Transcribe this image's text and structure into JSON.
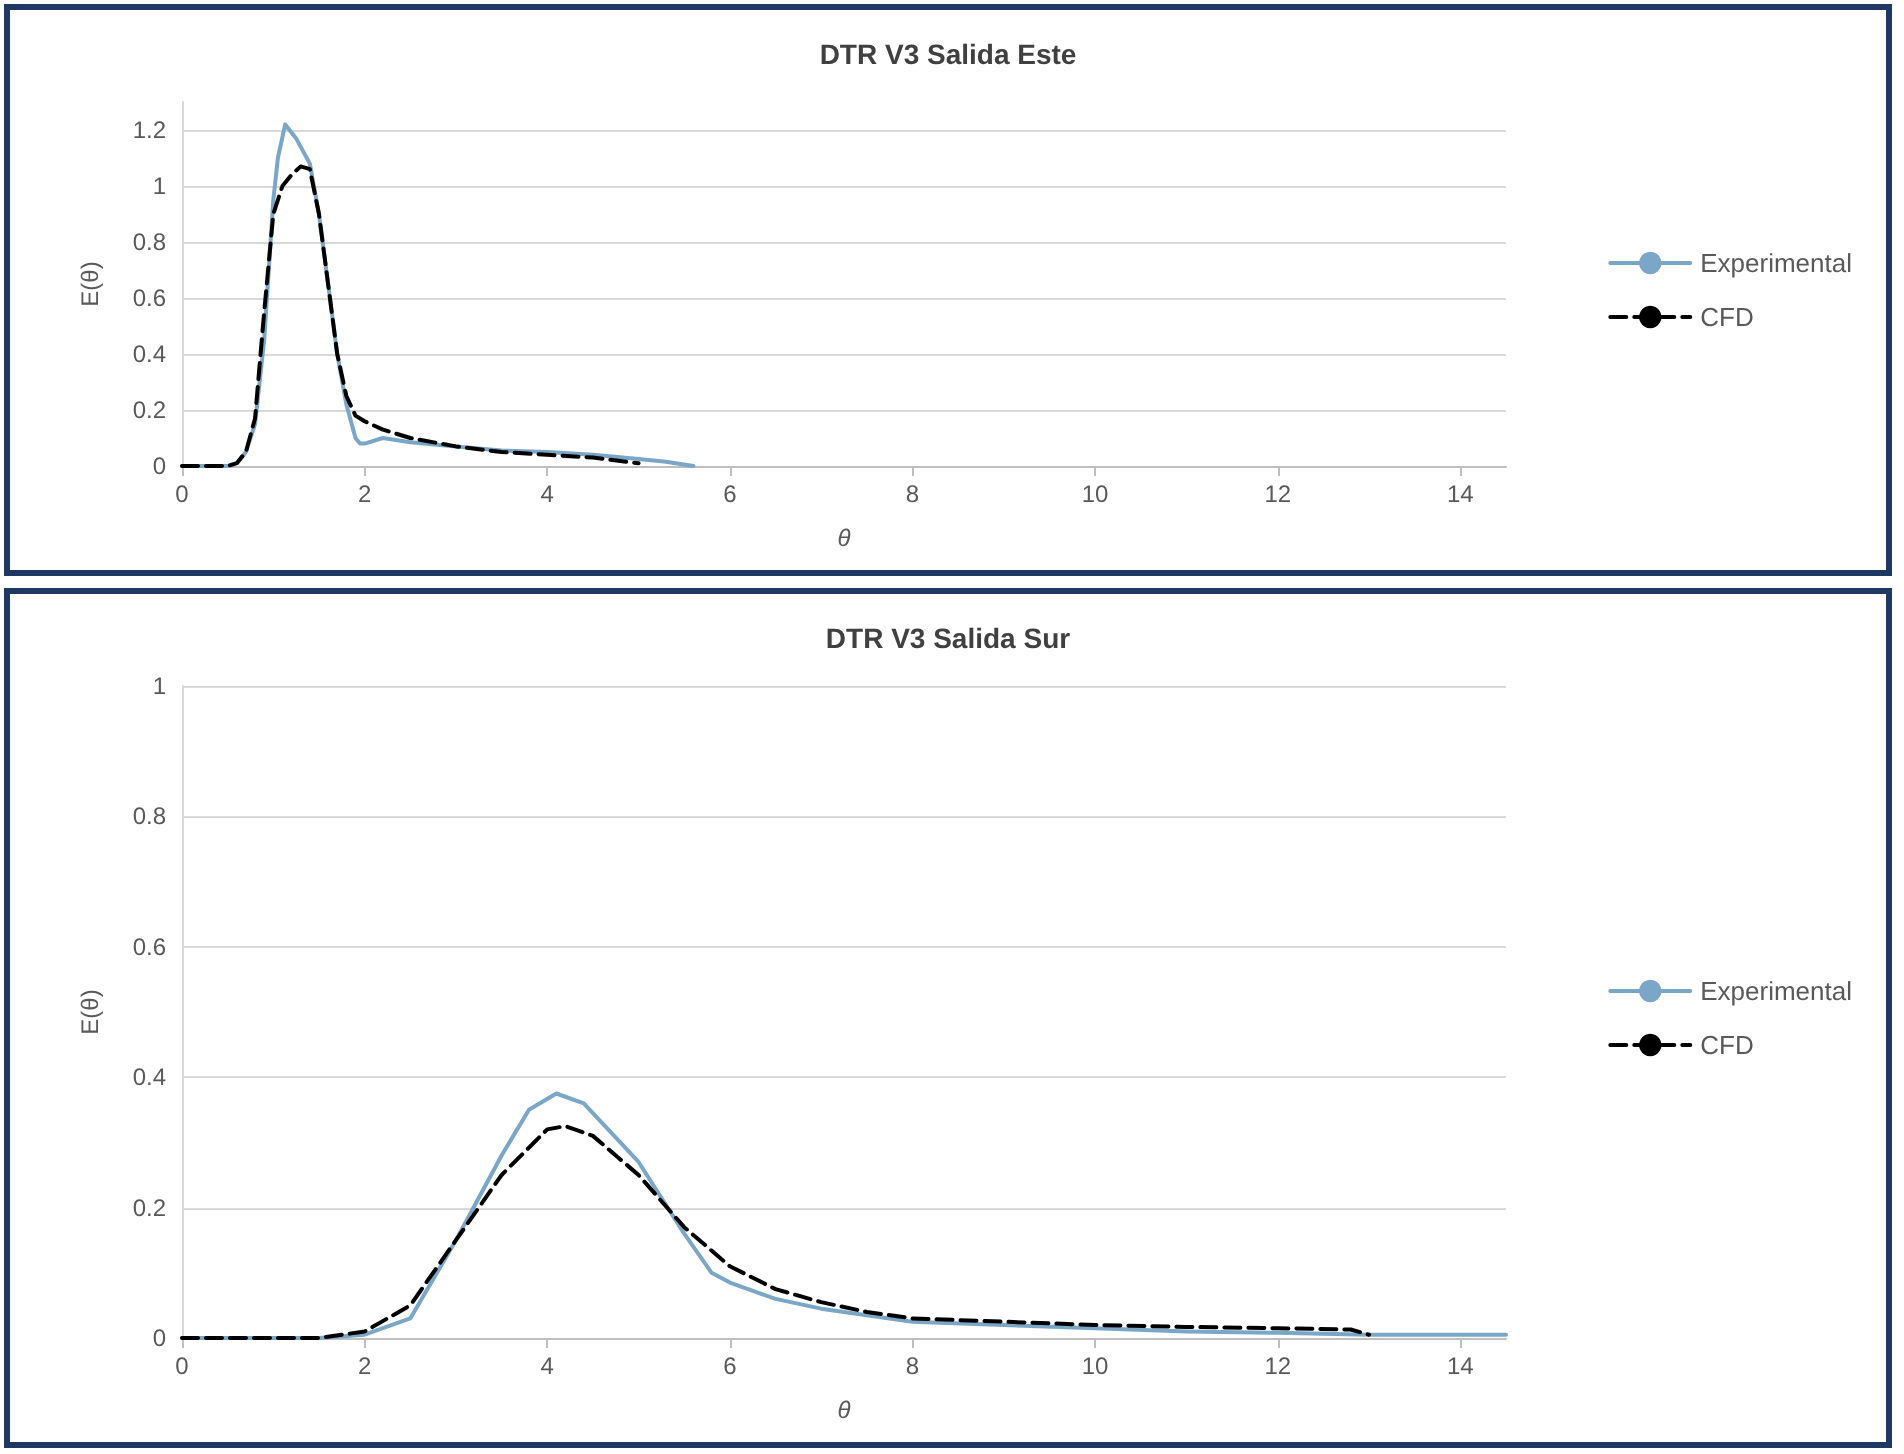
{
  "chart_data": [
    {
      "type": "line",
      "title": "DTR V3 Salida Este",
      "xlabel": "θ",
      "ylabel": "E(θ)",
      "xlim": [
        0,
        14.5
      ],
      "xticks": [
        0,
        2,
        4,
        6,
        8,
        10,
        12,
        14
      ],
      "ylim": [
        0,
        1.3
      ],
      "yticks": [
        0,
        0.2,
        0.4,
        0.6,
        0.8,
        1,
        1.2
      ],
      "grid": "y",
      "legend": "right",
      "marker": "none",
      "series": [
        {
          "name": "Experimental",
          "color": "#7aa6c8",
          "line_style": "solid",
          "x": [
            0,
            0.5,
            0.6,
            0.7,
            0.8,
            0.9,
            1.0,
            1.05,
            1.13,
            1.25,
            1.4,
            1.5,
            1.6,
            1.7,
            1.8,
            1.9,
            1.95,
            2.0,
            2.2,
            2.5,
            3,
            3.5,
            4,
            4.5,
            5,
            5.3,
            5.6
          ],
          "values": [
            0,
            0,
            0.01,
            0.05,
            0.15,
            0.45,
            0.95,
            1.1,
            1.22,
            1.17,
            1.08,
            0.9,
            0.65,
            0.4,
            0.22,
            0.1,
            0.08,
            0.08,
            0.1,
            0.085,
            0.07,
            0.055,
            0.05,
            0.04,
            0.025,
            0.015,
            0
          ]
        },
        {
          "name": "CFD",
          "color": "#000000",
          "line_style": "dashed",
          "x": [
            0,
            0.5,
            0.6,
            0.7,
            0.8,
            0.9,
            1.0,
            1.1,
            1.2,
            1.3,
            1.4,
            1.5,
            1.6,
            1.7,
            1.8,
            1.9,
            2.0,
            2.2,
            2.5,
            3,
            3.5,
            4,
            4.5,
            5
          ],
          "values": [
            0,
            0,
            0.01,
            0.05,
            0.17,
            0.55,
            0.9,
            1.0,
            1.04,
            1.07,
            1.06,
            0.9,
            0.65,
            0.4,
            0.25,
            0.18,
            0.16,
            0.13,
            0.1,
            0.07,
            0.05,
            0.04,
            0.03,
            0.01
          ]
        }
      ]
    },
    {
      "type": "line",
      "title": "DTR V3 Salida Sur",
      "xlabel": "θ",
      "ylabel": "E(θ)",
      "xlim": [
        0,
        14.5
      ],
      "xticks": [
        0,
        2,
        4,
        6,
        8,
        10,
        12,
        14
      ],
      "ylim": [
        0,
        1
      ],
      "yticks": [
        0,
        0.2,
        0.4,
        0.6,
        0.8,
        1
      ],
      "grid": "y",
      "legend": "right",
      "marker": "none",
      "series": [
        {
          "name": "Experimental",
          "color": "#7aa6c8",
          "line_style": "solid",
          "x": [
            0,
            1.5,
            2,
            2.5,
            3,
            3.5,
            3.8,
            4.1,
            4.4,
            5,
            5.5,
            5.8,
            6,
            6.5,
            7,
            7.5,
            8,
            9,
            10,
            11,
            12,
            13,
            14,
            14.5
          ],
          "values": [
            0,
            0,
            0.005,
            0.03,
            0.15,
            0.28,
            0.35,
            0.375,
            0.36,
            0.27,
            0.16,
            0.1,
            0.085,
            0.06,
            0.045,
            0.035,
            0.025,
            0.02,
            0.015,
            0.01,
            0.008,
            0.005,
            0.005,
            0.005
          ]
        },
        {
          "name": "CFD",
          "color": "#000000",
          "line_style": "dashed",
          "x": [
            0,
            1.5,
            2,
            2.5,
            3,
            3.5,
            4,
            4.2,
            4.5,
            5,
            5.5,
            6,
            6.5,
            7,
            7.5,
            8,
            9,
            10,
            11,
            12,
            12.8,
            13
          ],
          "values": [
            0,
            0,
            0.01,
            0.05,
            0.15,
            0.25,
            0.32,
            0.325,
            0.31,
            0.25,
            0.17,
            0.11,
            0.075,
            0.055,
            0.04,
            0.03,
            0.025,
            0.02,
            0.017,
            0.015,
            0.013,
            0.005
          ]
        }
      ]
    }
  ]
}
